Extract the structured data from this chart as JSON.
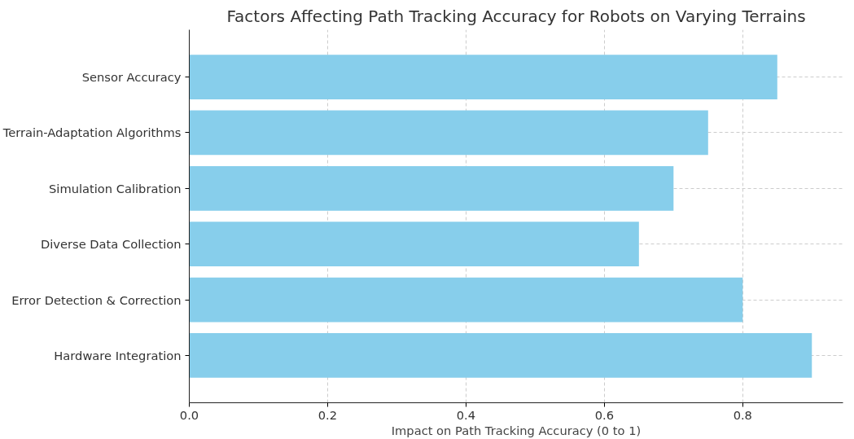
{
  "chart_data": {
    "type": "bar",
    "orientation": "horizontal",
    "title": "Factors Affecting Path Tracking Accuracy for Robots on Varying Terrains",
    "xlabel": "Impact on Path Tracking Accuracy (0 to 1)",
    "categories": [
      "Sensor Accuracy",
      "Terrain-Adaptation Algorithms",
      "Simulation Calibration",
      "Diverse Data Collection",
      "Error Detection & Correction",
      "Hardware Integration"
    ],
    "values": [
      0.85,
      0.75,
      0.7,
      0.65,
      0.8,
      0.9
    ],
    "color": "#87ceeb",
    "xlim": [
      0,
      0.945
    ],
    "xticks": [
      {
        "value": 0,
        "label": "0.0"
      },
      {
        "value": 0.2,
        "label": "0.2"
      },
      {
        "value": 0.4,
        "label": "0.4"
      },
      {
        "value": 0.6,
        "label": "0.6"
      },
      {
        "value": 0.8,
        "label": "0.8"
      }
    ],
    "grid": true
  }
}
